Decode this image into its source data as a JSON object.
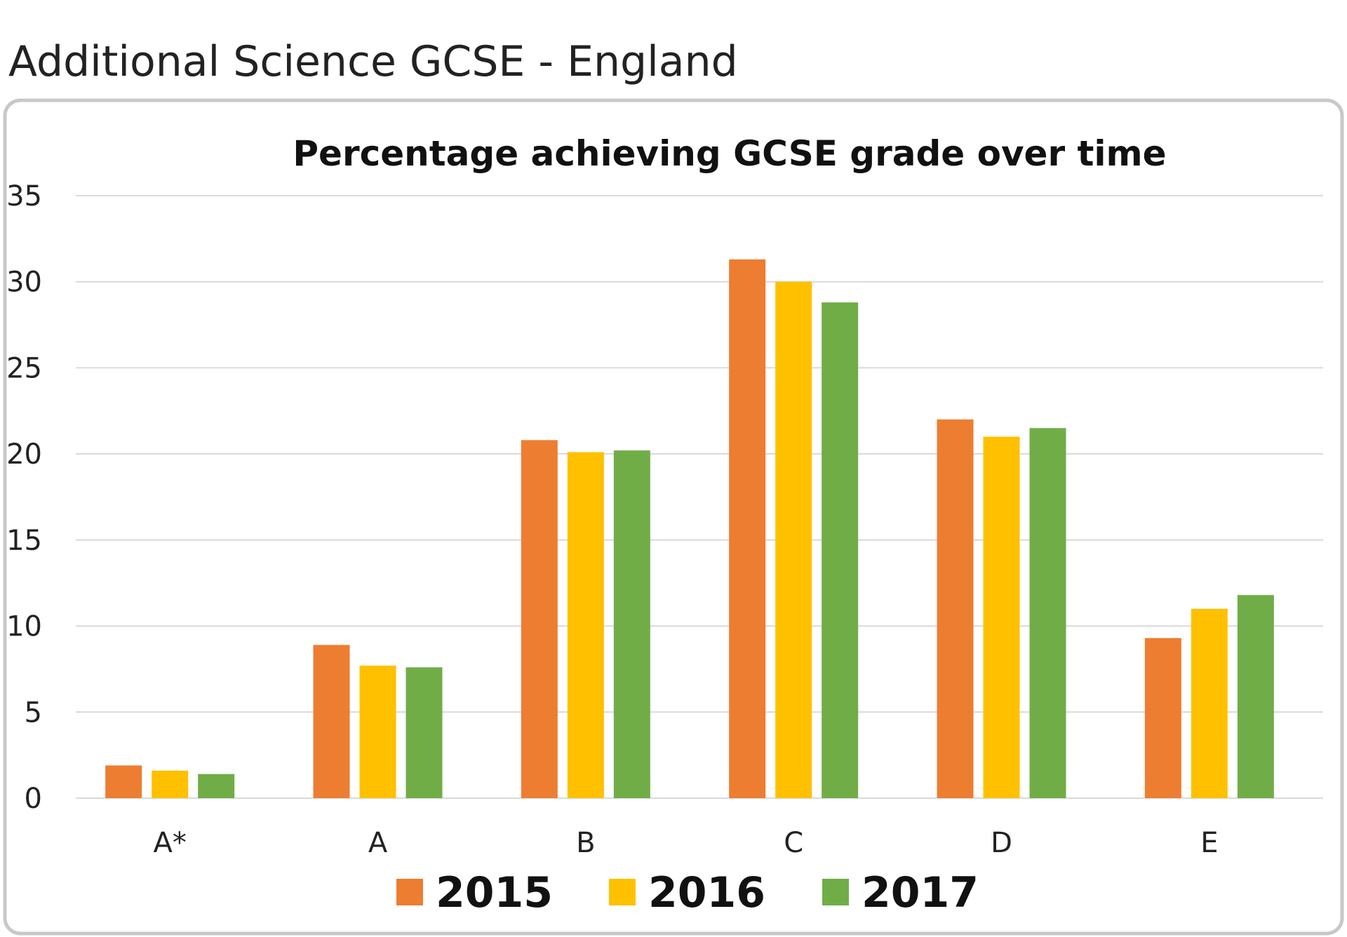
{
  "page_title": "Additional Science GCSE - England",
  "chart_data": {
    "type": "bar",
    "title": "Percentage achieving GCSE grade over time",
    "xlabel": "",
    "ylabel": "",
    "ylim": [
      0,
      35
    ],
    "yticks": [
      "0",
      "5",
      "10",
      "15",
      "20",
      "25",
      "30",
      "35"
    ],
    "grid": true,
    "legend_placement": "bottom",
    "categories": [
      "A*",
      "A",
      "B",
      "C",
      "D",
      "E"
    ],
    "series": [
      {
        "name": "2015",
        "color": "#ED7D31",
        "values": [
          1.9,
          8.9,
          20.8,
          31.3,
          22.0,
          9.3
        ]
      },
      {
        "name": "2016",
        "color": "#FFC000",
        "values": [
          1.6,
          7.7,
          20.1,
          30.0,
          21.0,
          11.0
        ]
      },
      {
        "name": "2017",
        "color": "#70AD47",
        "values": [
          1.4,
          7.6,
          20.2,
          28.8,
          21.5,
          11.8
        ]
      }
    ]
  }
}
